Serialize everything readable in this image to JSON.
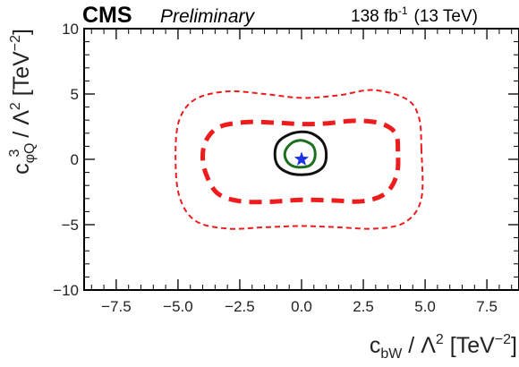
{
  "chart_data": {
    "type": "contour",
    "header": {
      "experiment": "CMS",
      "status": "Preliminary",
      "lumi_value": "138 fb",
      "lumi_exponent": "-1",
      "energy": "(13 TeV)"
    },
    "xlabel": {
      "main": "c",
      "sub": "bW",
      "mid": " / Λ",
      "sup": "2",
      "unit_pre": " [TeV",
      "unit_sup": "−2",
      "unit_post": "]"
    },
    "ylabel": {
      "main": "c",
      "sub": "φQ",
      "sup": "3",
      "mid": " / Λ",
      "sup2": "2",
      "unit_pre": " [TeV",
      "unit_sup": "−2",
      "unit_post": "]"
    },
    "xlim": [
      -8.8,
      8.8
    ],
    "ylim": [
      -10,
      10
    ],
    "xticks": [
      -7.5,
      -5.0,
      -2.5,
      0.0,
      2.5,
      5.0,
      7.5
    ],
    "xtick_labels": [
      "−7.5",
      "−5.0",
      "−2.5",
      "0.0",
      "2.5",
      "5.0",
      "7.5"
    ],
    "yticks": [
      -10,
      -5,
      0,
      5,
      10
    ],
    "ytick_labels": [
      "−10",
      "−5",
      "0",
      "5",
      "10"
    ],
    "best_fit": {
      "x": 0.0,
      "y": 0.0,
      "marker": "star",
      "color": "#1a33e6"
    },
    "contours": [
      {
        "style": "solid",
        "color": "#1d6e1d",
        "points": [
          [
            0.55,
            0.5
          ],
          [
            0.45,
            1.05
          ],
          [
            0.2,
            1.35
          ],
          [
            -0.05,
            1.45
          ],
          [
            -0.35,
            1.3
          ],
          [
            -0.6,
            0.85
          ],
          [
            -0.68,
            0.3
          ],
          [
            -0.55,
            -0.25
          ],
          [
            -0.3,
            -0.55
          ],
          [
            0.0,
            -0.6
          ],
          [
            0.3,
            -0.5
          ],
          [
            0.5,
            -0.1
          ]
        ]
      },
      {
        "style": "solid",
        "color": "#111111",
        "points": [
          [
            1.0,
            0.45
          ],
          [
            0.85,
            1.35
          ],
          [
            0.45,
            1.95
          ],
          [
            0.0,
            2.1
          ],
          [
            -0.5,
            1.9
          ],
          [
            -0.95,
            1.3
          ],
          [
            -1.08,
            0.4
          ],
          [
            -0.95,
            -0.5
          ],
          [
            -0.5,
            -1.05
          ],
          [
            0.0,
            -1.18
          ],
          [
            0.5,
            -1.05
          ],
          [
            0.9,
            -0.5
          ]
        ]
      },
      {
        "style": "dashed-thick",
        "color": "#ee1c1c",
        "points": [
          [
            3.9,
            0.6
          ],
          [
            3.8,
            2.0
          ],
          [
            3.2,
            2.75
          ],
          [
            2.2,
            2.95
          ],
          [
            1.0,
            2.75
          ],
          [
            0.0,
            2.7
          ],
          [
            -1.0,
            2.8
          ],
          [
            -2.2,
            2.85
          ],
          [
            -3.3,
            2.5
          ],
          [
            -3.85,
            1.5
          ],
          [
            -4.0,
            0.2
          ],
          [
            -3.85,
            -1.2
          ],
          [
            -3.4,
            -2.6
          ],
          [
            -2.5,
            -3.2
          ],
          [
            -1.3,
            -3.25
          ],
          [
            0.0,
            -3.1
          ],
          [
            1.3,
            -3.15
          ],
          [
            2.5,
            -3.2
          ],
          [
            3.4,
            -2.6
          ],
          [
            3.85,
            -1.2
          ]
        ]
      },
      {
        "style": "dashed-thin",
        "color": "#ee1c1c",
        "points": [
          [
            4.85,
            0.8
          ],
          [
            4.75,
            3.2
          ],
          [
            4.25,
            4.6
          ],
          [
            2.9,
            5.3
          ],
          [
            1.5,
            4.9
          ],
          [
            0.0,
            4.7
          ],
          [
            -1.5,
            5.0
          ],
          [
            -3.0,
            5.2
          ],
          [
            -4.3,
            4.6
          ],
          [
            -4.95,
            3.0
          ],
          [
            -5.1,
            0.3
          ],
          [
            -4.95,
            -2.8
          ],
          [
            -4.3,
            -4.7
          ],
          [
            -3.0,
            -5.3
          ],
          [
            -1.5,
            -5.2
          ],
          [
            0.0,
            -5.1
          ],
          [
            1.5,
            -5.2
          ],
          [
            3.0,
            -5.3
          ],
          [
            4.2,
            -4.8
          ],
          [
            4.85,
            -3.0
          ]
        ]
      }
    ]
  }
}
